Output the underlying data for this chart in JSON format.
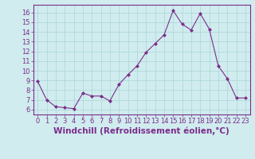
{
  "x": [
    0,
    1,
    2,
    3,
    4,
    5,
    6,
    7,
    8,
    9,
    10,
    11,
    12,
    13,
    14,
    15,
    16,
    17,
    18,
    19,
    20,
    21,
    22,
    23
  ],
  "y": [
    8.9,
    7.0,
    6.3,
    6.2,
    6.1,
    7.7,
    7.4,
    7.4,
    6.9,
    8.6,
    9.6,
    10.5,
    11.9,
    12.8,
    13.7,
    16.2,
    14.8,
    14.2,
    15.9,
    14.3,
    10.5,
    9.2,
    7.2,
    7.2
  ],
  "line_color": "#7B2D8B",
  "marker": "D",
  "marker_size": 2.0,
  "background_color": "#d0ecee",
  "grid_color": "#b0d8dc",
  "xlabel": "Windchill (Refroidissement éolien,°C)",
  "xlabel_fontsize": 7.5,
  "ylim": [
    5.5,
    16.8
  ],
  "xlim": [
    -0.5,
    23.5
  ],
  "yticks": [
    6,
    7,
    8,
    9,
    10,
    11,
    12,
    13,
    14,
    15,
    16
  ],
  "xticks": [
    0,
    1,
    2,
    3,
    4,
    5,
    6,
    7,
    8,
    9,
    10,
    11,
    12,
    13,
    14,
    15,
    16,
    17,
    18,
    19,
    20,
    21,
    22,
    23
  ],
  "tick_fontsize": 6.0,
  "line_color_hex": "#7B2D8B",
  "border_color": "#7B2D8B"
}
